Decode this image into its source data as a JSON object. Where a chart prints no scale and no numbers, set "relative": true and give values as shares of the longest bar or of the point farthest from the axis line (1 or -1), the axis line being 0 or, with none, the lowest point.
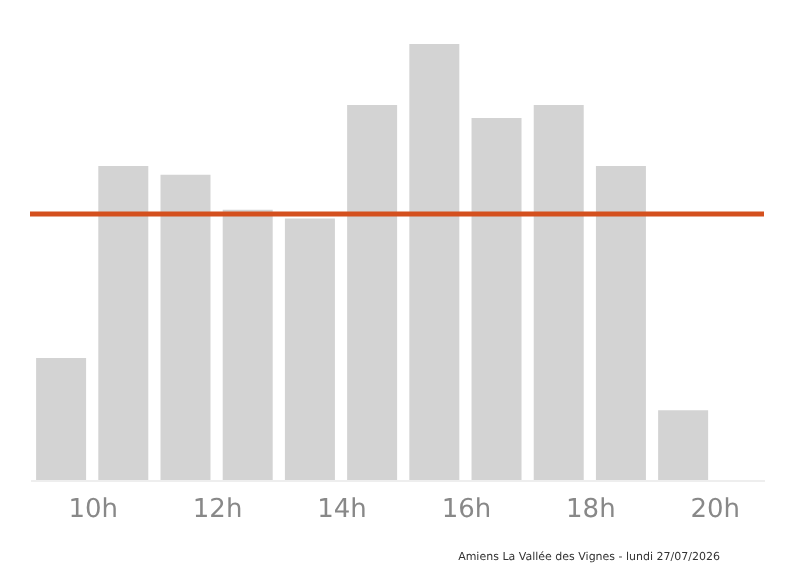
{
  "chart_data": {
    "type": "bar",
    "relative": true,
    "x": [
      9.5,
      10.5,
      11.5,
      12.5,
      13.5,
      14.5,
      15.5,
      16.5,
      17.5,
      18.5,
      19.5
    ],
    "values": [
      0.28,
      0.72,
      0.7,
      0.62,
      0.6,
      0.86,
      1,
      0.83,
      0.86,
      0.72,
      0.16
    ],
    "color": "#d3d3d3",
    "xlim": [
      9,
      20.8
    ],
    "xticks": [
      {
        "value": 10,
        "label": "10h"
      },
      {
        "value": 12,
        "label": "12h"
      },
      {
        "value": 14,
        "label": "14h"
      },
      {
        "value": 16,
        "label": "16h"
      },
      {
        "value": 18,
        "label": "18h"
      },
      {
        "value": 20,
        "label": "20h"
      }
    ],
    "ref_lines": [
      {
        "axis": "y",
        "value": 0.61,
        "color": "#d4501e"
      }
    ],
    "annotations": [
      "Amiens La Vallée des Vignes - lundi 27/07/2026"
    ],
    "grid": false
  }
}
